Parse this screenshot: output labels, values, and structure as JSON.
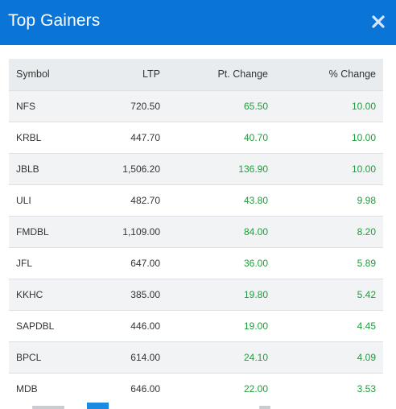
{
  "header": {
    "title": "Top Gainers",
    "bg_color": "#0a75d7"
  },
  "table": {
    "columns": [
      "Symbol",
      "LTP",
      "Pt. Change",
      "% Change"
    ],
    "rows": [
      {
        "symbol": "NFS",
        "ltp": "720.50",
        "pt_change": "65.50",
        "pct_change": "10.00"
      },
      {
        "symbol": "KRBL",
        "ltp": "447.70",
        "pt_change": "40.70",
        "pct_change": "10.00"
      },
      {
        "symbol": "JBLB",
        "ltp": "1,506.20",
        "pt_change": "136.90",
        "pct_change": "10.00"
      },
      {
        "symbol": "ULI",
        "ltp": "482.70",
        "pt_change": "43.80",
        "pct_change": "9.98"
      },
      {
        "symbol": "FMDBL",
        "ltp": "1,109.00",
        "pt_change": "84.00",
        "pct_change": "8.20"
      },
      {
        "symbol": "JFL",
        "ltp": "647.00",
        "pt_change": "36.00",
        "pct_change": "5.89"
      },
      {
        "symbol": "KKHC",
        "ltp": "385.00",
        "pt_change": "19.80",
        "pct_change": "5.42"
      },
      {
        "symbol": "SAPDBL",
        "ltp": "446.00",
        "pt_change": "19.00",
        "pct_change": "4.45"
      },
      {
        "symbol": "BPCL",
        "ltp": "614.00",
        "pt_change": "24.10",
        "pct_change": "4.09"
      },
      {
        "symbol": "MDB",
        "ltp": "646.00",
        "pt_change": "22.00",
        "pct_change": "3.53"
      }
    ],
    "positive_color": "#1e9e3a"
  },
  "icons": {
    "close": "close-icon"
  }
}
